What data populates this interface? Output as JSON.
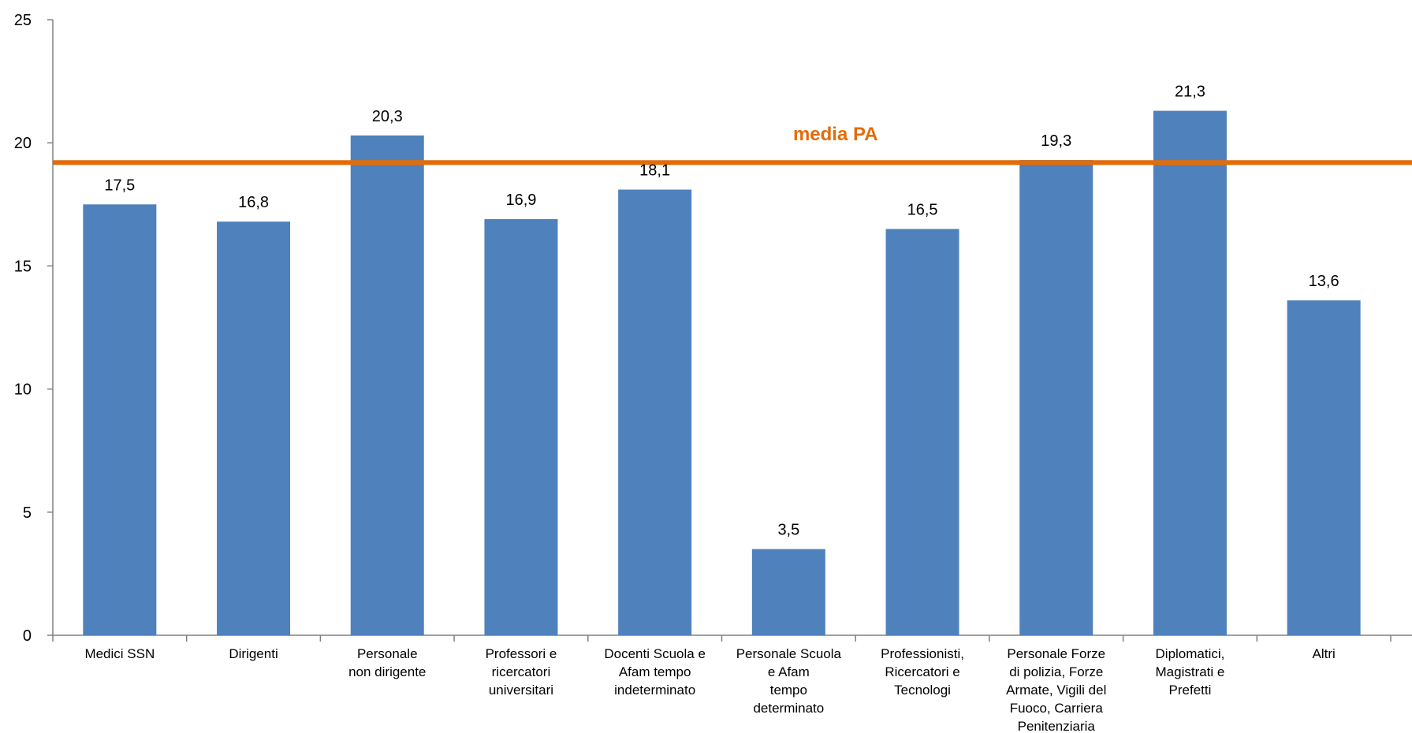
{
  "chart_data": {
    "type": "bar",
    "categories": [
      "Medici SSN",
      "Dirigenti",
      "Personale non dirigente",
      "Professori e ricercatori universitari",
      "Docenti Scuola e Afam tempo indeterminato",
      "Personale Scuola e Afam tempo determinato",
      "Professionisti, Ricercatori e Tecnologi",
      "Personale Forze di polizia, Forze Armate, Vigili del Fuoco, Carriera Penitenziaria",
      "Diplomatici, Magistrati e Prefetti",
      "Altri"
    ],
    "category_lines": [
      [
        "Medici SSN"
      ],
      [
        "Dirigenti"
      ],
      [
        "Personale",
        "non dirigente"
      ],
      [
        "Professori e",
        "ricercatori",
        "universitari"
      ],
      [
        "Docenti Scuola e",
        "Afam tempo",
        "indeterminato"
      ],
      [
        "Personale Scuola",
        "e Afam",
        "tempo",
        "determinato"
      ],
      [
        "Professionisti,",
        "Ricercatori e",
        "Tecnologi"
      ],
      [
        "Personale Forze",
        "di polizia, Forze",
        "Armate, Vigili del",
        "Fuoco, Carriera",
        "Penitenziaria"
      ],
      [
        "Diplomatici,",
        "Magistrati e",
        "Prefetti"
      ],
      [
        "Altri"
      ]
    ],
    "values": [
      17.5,
      16.8,
      20.3,
      16.9,
      18.1,
      3.5,
      16.5,
      19.3,
      21.3,
      13.6
    ],
    "value_labels": [
      "17,5",
      "16,8",
      "20,3",
      "16,9",
      "18,1",
      "3,5",
      "16,5",
      "19,3",
      "21,3",
      "13,6"
    ],
    "title": "",
    "xlabel": "",
    "ylabel": "",
    "ylim": [
      0,
      25
    ],
    "yticks": [
      0,
      5,
      10,
      15,
      20,
      25
    ],
    "grid": false,
    "reference_line": {
      "label": "media PA",
      "value": 19.2
    },
    "colors": {
      "bar": "#4F81BD",
      "reference_line": "#E36C0A",
      "axis": "#808080"
    }
  }
}
